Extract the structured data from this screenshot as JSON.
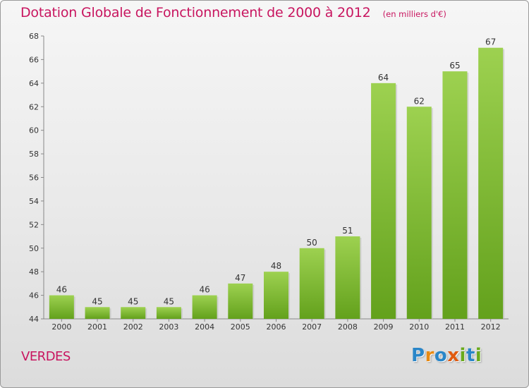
{
  "header": {
    "title": "Dotation Globale de Fonctionnement de 2000 à 2012",
    "unit": "(en milliers d'€)"
  },
  "footer": {
    "commune": "VERDES",
    "logo_letters": [
      "P",
      "r",
      "o",
      "x",
      "i",
      "t",
      "i"
    ]
  },
  "colors": {
    "title": "#c8155f",
    "bar_top": "#9dd150",
    "bar_bottom": "#63a11c",
    "axis": "#888888"
  },
  "chart_data": {
    "type": "bar",
    "title": "Dotation Globale de Fonctionnement de 2000 à 2012",
    "subtitle": "(en milliers d'€)",
    "categories": [
      "2000",
      "2001",
      "2002",
      "2003",
      "2004",
      "2005",
      "2006",
      "2007",
      "2008",
      "2009",
      "2010",
      "2011",
      "2012"
    ],
    "values": [
      46,
      45,
      45,
      45,
      46,
      47,
      48,
      50,
      51,
      64,
      62,
      65,
      67
    ],
    "ylim": [
      44,
      68
    ],
    "yticks": [
      44,
      46,
      48,
      50,
      52,
      54,
      56,
      58,
      60,
      62,
      64,
      66,
      68
    ],
    "xlabel": "",
    "ylabel": "",
    "grid": false,
    "legend": "none"
  }
}
